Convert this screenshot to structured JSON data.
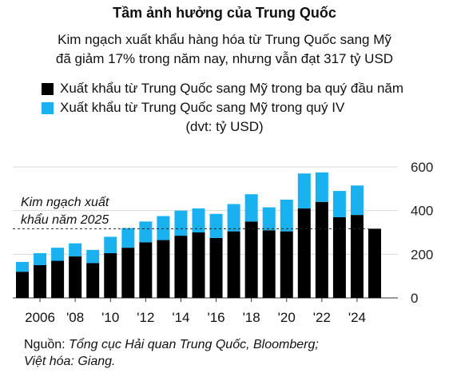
{
  "title": "Tầm ảnh hưởng của Trung Quốc",
  "subtitle_lines": [
    "Kim ngạch xuất khẩu hàng hóa từ Trung Quốc sang Mỹ",
    "đã giảm 17% trong năm nay, nhưng vẫn đạt 317 tỷ USD"
  ],
  "unit": "(dvt: tỷ USD)",
  "colors": {
    "first_three_quarters": "#000000",
    "q4": "#1ab1f0",
    "grid": "#d8d8d8"
  },
  "annotation_lines": [
    "Kim ngạch xuất",
    "khẩu năm 2025"
  ],
  "source_prefix": "Nguồn: ",
  "source_line1": "Tổng cục Hải quan Trung Quốc, Bloomberg;",
  "source_line2": "Việt hóa: Giang.",
  "chart_data": {
    "type": "bar",
    "stacked": true,
    "categories": [
      "2005",
      "2006",
      "2007",
      "2008",
      "2009",
      "2010",
      "2011",
      "2012",
      "2013",
      "2014",
      "2015",
      "2016",
      "2017",
      "2018",
      "2019",
      "2020",
      "2021",
      "2022",
      "2023",
      "2024",
      "2025"
    ],
    "tick_labels": [
      "2006",
      "'08",
      "'10",
      "'12",
      "'14",
      "'16",
      "'18",
      "'20",
      "'22",
      "'24"
    ],
    "tick_years": [
      "2006",
      "2008",
      "2010",
      "2012",
      "2014",
      "2016",
      "2018",
      "2020",
      "2022",
      "2024"
    ],
    "series": [
      {
        "name": "Xuất khẩu từ Trung Quốc sang Mỹ trong ba quý đầu năm",
        "values": [
          120,
          150,
          170,
          190,
          160,
          205,
          230,
          255,
          265,
          285,
          300,
          275,
          305,
          350,
          310,
          305,
          410,
          440,
          370,
          380,
          317
        ]
      },
      {
        "name": "Xuất khẩu từ Trung Quốc sang Mỹ trong quý IV",
        "values": [
          45,
          55,
          60,
          60,
          60,
          75,
          90,
          95,
          110,
          115,
          110,
          110,
          125,
          125,
          105,
          145,
          160,
          135,
          120,
          135,
          0
        ]
      }
    ],
    "y_ticks": [
      0,
      200,
      400,
      600
    ],
    "ylim": [
      0,
      640
    ],
    "reference_line": {
      "value": 317
    },
    "grid": true,
    "y_axis_side": "right",
    "legend_position": "top-left"
  }
}
